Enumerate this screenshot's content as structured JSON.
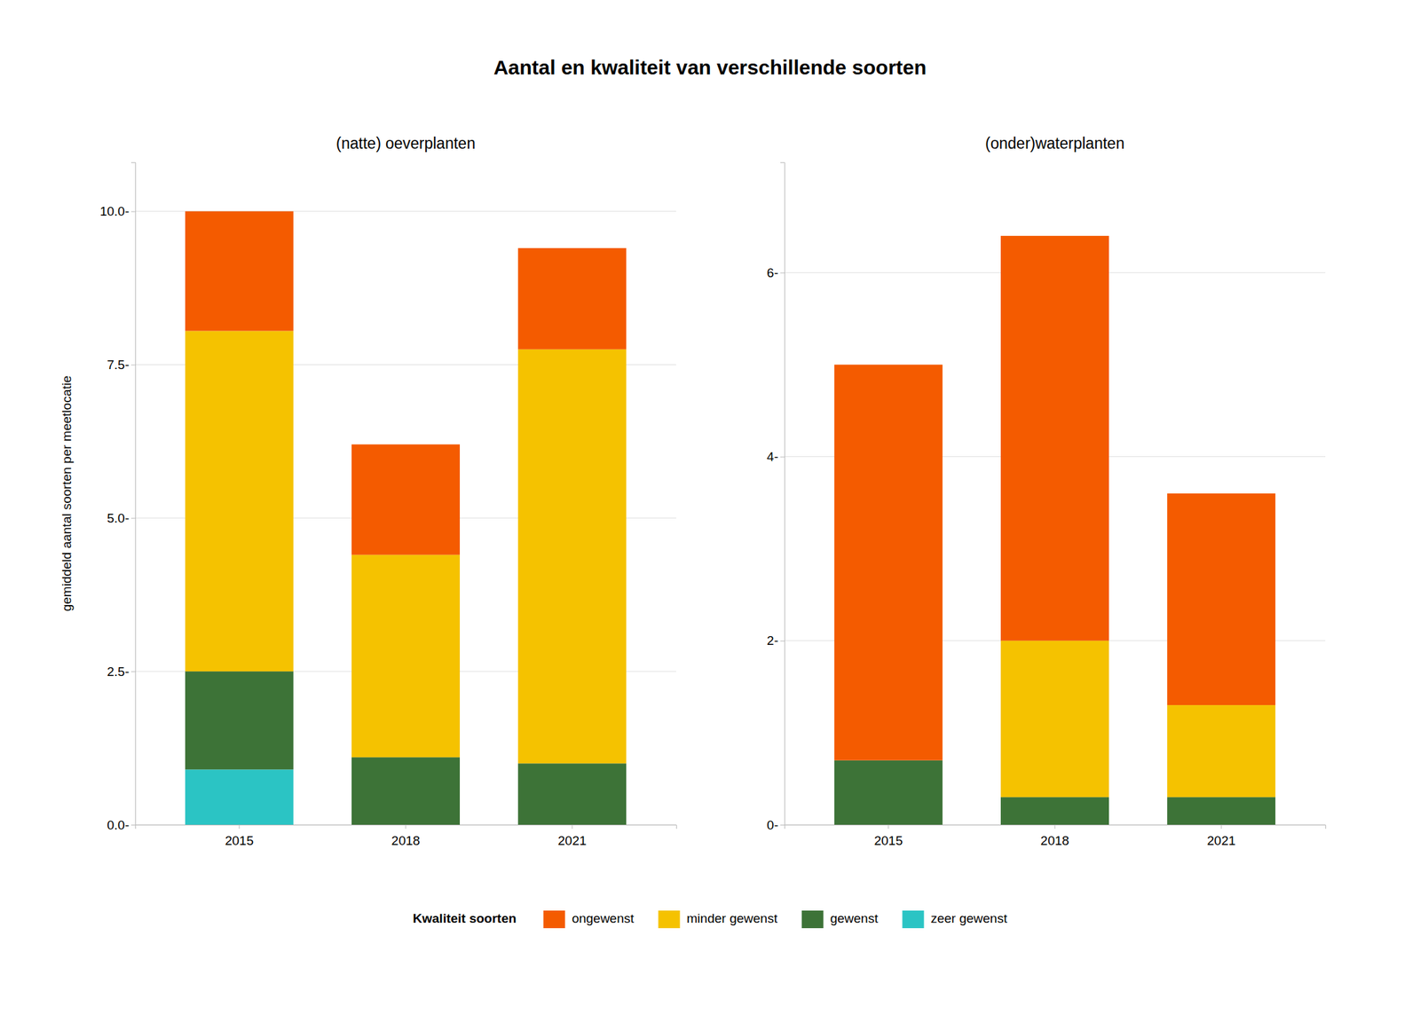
{
  "chart_data": [
    {
      "type": "bar",
      "stacked": true,
      "grid": true,
      "title": "Aantal en kwaliteit van verschillende soorten",
      "subtitle": "(natte) oeverplanten",
      "ylabel": "gemiddeld aantal soorten per meetlocatie",
      "legend_title": "Kwaliteit soorten",
      "categories": [
        "2015",
        "2018",
        "2021"
      ],
      "series": [
        {
          "name": "zeer gewenst",
          "color": "#2BC4C4",
          "values": [
            0.9,
            0.0,
            0.0
          ]
        },
        {
          "name": "gewenst",
          "color": "#3D7337",
          "values": [
            1.6,
            1.1,
            1.0
          ]
        },
        {
          "name": "minder gewenst",
          "color": "#F5C200",
          "values": [
            5.55,
            3.3,
            6.75
          ]
        },
        {
          "name": "ongewenst",
          "color": "#F45B00",
          "values": [
            1.95,
            1.8,
            1.65
          ]
        }
      ],
      "ylim": [
        0,
        10.8
      ],
      "yticks": [
        {
          "value": 0.0,
          "label": "0.0-"
        },
        {
          "value": 2.5,
          "label": "2.5-"
        },
        {
          "value": 5.0,
          "label": "5.0-"
        },
        {
          "value": 7.5,
          "label": "7.5-"
        },
        {
          "value": 10.0,
          "label": "10.0-"
        }
      ]
    },
    {
      "type": "bar",
      "stacked": true,
      "grid": true,
      "subtitle": "(onder)waterplanten",
      "categories": [
        "2015",
        "2018",
        "2021"
      ],
      "series": [
        {
          "name": "zeer gewenst",
          "color": "#2BC4C4",
          "values": [
            0.0,
            0.0,
            0.0
          ]
        },
        {
          "name": "gewenst",
          "color": "#3D7337",
          "values": [
            0.7,
            0.3,
            0.3
          ]
        },
        {
          "name": "minder gewenst",
          "color": "#F5C200",
          "values": [
            0.0,
            1.7,
            1.0
          ]
        },
        {
          "name": "ongewenst",
          "color": "#F45B00",
          "values": [
            4.3,
            4.4,
            2.3
          ]
        }
      ],
      "ylim": [
        0,
        7.2
      ],
      "yticks": [
        {
          "value": 0,
          "label": "0-"
        },
        {
          "value": 2,
          "label": "2-"
        },
        {
          "value": 4,
          "label": "4-"
        },
        {
          "value": 6,
          "label": "6-"
        }
      ]
    }
  ]
}
